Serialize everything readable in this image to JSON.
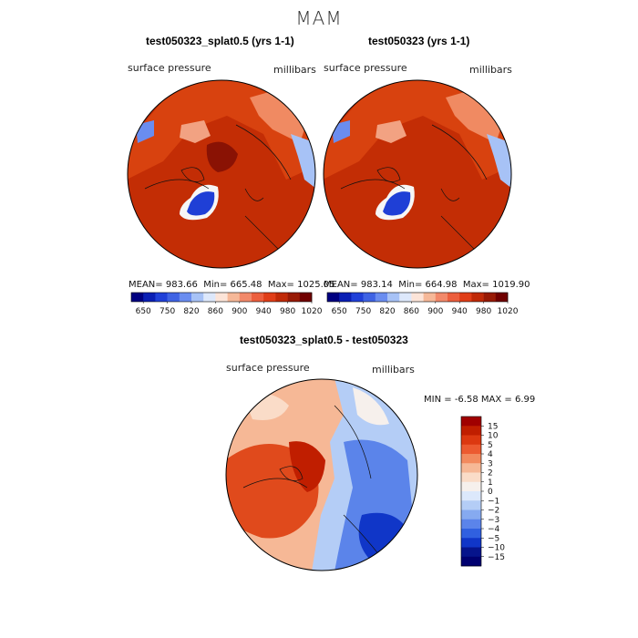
{
  "season": "MAM",
  "panels": [
    {
      "title": "test050323_splat0.5 (yrs 1-1)",
      "field": "surface pressure",
      "units": "millibars",
      "stats": {
        "mean": "983.66",
        "min": "665.48",
        "max": "1025.05"
      },
      "stats_labels": {
        "mean": "MEAN=",
        "min": "Min=",
        "max": "Max="
      }
    },
    {
      "title": "test050323 (yrs 1-1)",
      "field": "surface pressure",
      "units": "millibars",
      "stats": {
        "mean": "983.14",
        "min": "664.98",
        "max": "1019.90"
      },
      "stats_labels": {
        "mean": "MEAN=",
        "min": "Min=",
        "max": "Max="
      }
    }
  ],
  "diff": {
    "title": "test050323_splat0.5 - test050323",
    "field": "surface pressure",
    "units": "millibars",
    "min_label": "MIN =",
    "min": "-6.58",
    "max_label": "MAX =",
    "max": "6.99"
  },
  "chart_data": [
    {
      "type": "heatmap",
      "projection": "polar stereographic (north)",
      "title": "test050323_splat0.5 (yrs 1-1)",
      "variable": "surface pressure",
      "units": "millibars",
      "colorbar": {
        "tick_labels": [
          "650",
          "750",
          "820",
          "860",
          "900",
          "940",
          "980",
          "1020"
        ],
        "colors": [
          "#000080",
          "#0a1fb4",
          "#2040d8",
          "#3f63e4",
          "#6a8df0",
          "#a7c2f6",
          "#dde8fb",
          "#fce4d8",
          "#f6b898",
          "#f2896a",
          "#ec5f3e",
          "#e03e18",
          "#c02a08",
          "#981a05",
          "#700000"
        ]
      }
    },
    {
      "type": "heatmap",
      "projection": "polar stereographic (north)",
      "title": "test050323 (yrs 1-1)",
      "variable": "surface pressure",
      "units": "millibars",
      "colorbar": {
        "tick_labels": [
          "650",
          "750",
          "820",
          "860",
          "900",
          "940",
          "980",
          "1020"
        ],
        "colors": [
          "#000080",
          "#0a1fb4",
          "#2040d8",
          "#3f63e4",
          "#6a8df0",
          "#a7c2f6",
          "#dde8fb",
          "#fce4d8",
          "#f6b898",
          "#f2896a",
          "#ec5f3e",
          "#e03e18",
          "#c02a08",
          "#981a05",
          "#700000"
        ]
      }
    },
    {
      "type": "heatmap",
      "projection": "polar stereographic (north)",
      "title": "test050323_splat0.5 - test050323",
      "variable": "surface pressure",
      "units": "millibars",
      "colorbar": {
        "tick_labels": [
          "15",
          "10",
          "5",
          "4",
          "3",
          "2",
          "1",
          "0",
          "−1",
          "−2",
          "−3",
          "−4",
          "−5",
          "−10",
          "−15"
        ],
        "colors": [
          "#a00000",
          "#c01e00",
          "#dc3810",
          "#ec5a30",
          "#f28a5e",
          "#f6b896",
          "#fadcc8",
          "#f6f0ec",
          "#dce8fb",
          "#b4cdf6",
          "#86aaf0",
          "#5b84ea",
          "#3060e0",
          "#1036c8",
          "#06148c",
          "#000070"
        ]
      }
    }
  ]
}
